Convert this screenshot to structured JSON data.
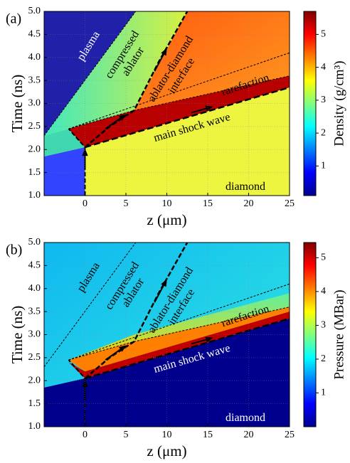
{
  "chart_data": [
    {
      "type": "heatmap",
      "panel_label": "(a)",
      "xlabel": "z (μm)",
      "ylabel": "Time (ns)",
      "xlim": [
        -5,
        25
      ],
      "ylim": [
        1,
        5
      ],
      "xticks": [
        0,
        5,
        10,
        15,
        20,
        25
      ],
      "yticks": [
        {
          "value": 1,
          "label": "1.0"
        },
        {
          "value": 1.5,
          "label": "1.5"
        },
        {
          "value": 2,
          "label": "2.0"
        },
        {
          "value": 2.5,
          "label": "2.5"
        },
        {
          "value": 3,
          "label": "3.0"
        },
        {
          "value": 3.5,
          "label": "3.5"
        },
        {
          "value": 4,
          "label": "4.0"
        },
        {
          "value": 4.5,
          "label": "4.5"
        },
        {
          "value": 5,
          "label": "5.0"
        }
      ],
      "grid": true,
      "colormap": "jet",
      "colorbar": {
        "label": "Density (g/cm³)",
        "lim": [
          0.1,
          5.7
        ],
        "ticks": [
          1,
          2,
          3,
          4,
          5
        ]
      },
      "annotations": [
        [
          "plasma"
        ],
        [
          "compressed",
          "ablator"
        ],
        [
          "ablator-diamond",
          "interface"
        ],
        [
          "rarefaction"
        ],
        [
          "main shock wave"
        ],
        [
          "diamond"
        ]
      ]
    },
    {
      "type": "heatmap",
      "panel_label": "(b)",
      "xlabel": "z (μm)",
      "ylabel": "Time (ns)",
      "xlim": [
        -5,
        25
      ],
      "ylim": [
        1,
        5
      ],
      "xticks": [
        0,
        5,
        10,
        15,
        20,
        25
      ],
      "yticks": [
        {
          "value": 1,
          "label": "1.0"
        },
        {
          "value": 1.5,
          "label": "1.5"
        },
        {
          "value": 2,
          "label": "2.0"
        },
        {
          "value": 2.5,
          "label": "2.5"
        },
        {
          "value": 3,
          "label": "3.0"
        },
        {
          "value": 3.5,
          "label": "3.5"
        },
        {
          "value": 4,
          "label": "4.0"
        },
        {
          "value": 4.5,
          "label": "4.5"
        },
        {
          "value": 5,
          "label": "5.0"
        }
      ],
      "grid": true,
      "colormap": "jet",
      "colorbar": {
        "label": "Pressure (MBar)",
        "lim": [
          0,
          5.45
        ],
        "ticks": [
          1,
          2,
          3,
          4,
          5
        ]
      },
      "annotations": [
        [
          "plasma"
        ],
        [
          "compressed",
          "ablator"
        ],
        [
          "ablator-diamond",
          "interface"
        ],
        [
          "rarefaction"
        ],
        [
          "main shock wave"
        ],
        [
          "diamond"
        ]
      ]
    }
  ]
}
